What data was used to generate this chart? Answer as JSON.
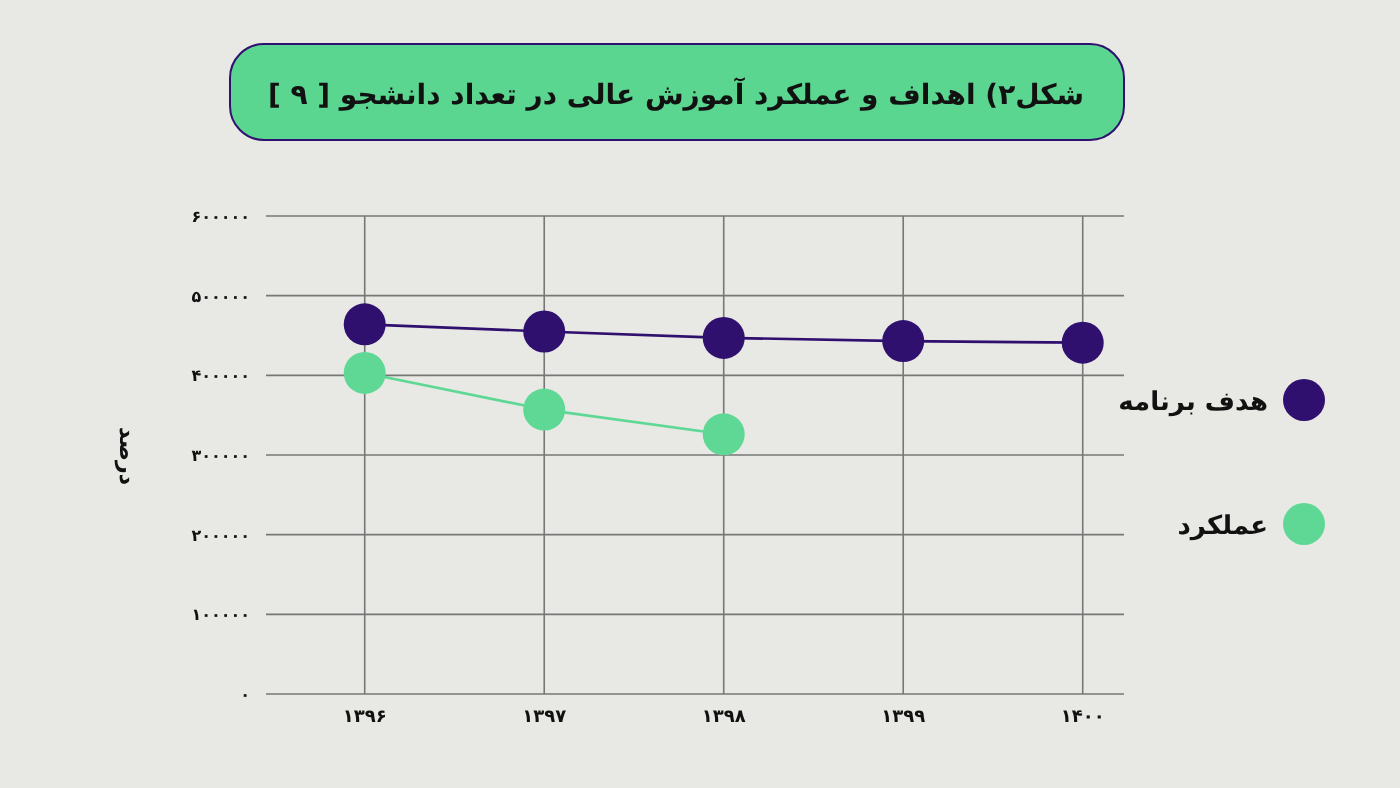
{
  "chart_data": {
    "type": "line",
    "title": "شکل۲) اهداف و عملکرد آموزش عالی در تعداد دانشجو [ ۹ ]",
    "ylabel": "درصد",
    "categories": [
      "۱۳۹۶",
      "۱۳۹۷",
      "۱۳۹۸",
      "۱۳۹۹",
      "۱۴۰۰"
    ],
    "series": [
      {
        "name": "هدف برنامه",
        "color": "#30106e",
        "values": [
          464000,
          455000,
          447000,
          443000,
          441000
        ]
      },
      {
        "name": "عملکرد",
        "color": "#5ed894",
        "values": [
          403000,
          357000,
          326000,
          null,
          null
        ]
      }
    ],
    "ylim": [
      0,
      600000
    ],
    "yticks": [
      {
        "value": 0,
        "label": "۰"
      },
      {
        "value": 100000,
        "label": "۱۰۰۰۰۰"
      },
      {
        "value": 200000,
        "label": "۲۰۰۰۰۰"
      },
      {
        "value": 300000,
        "label": "۳۰۰۰۰۰"
      },
      {
        "value": 400000,
        "label": "۴۰۰۰۰۰"
      },
      {
        "value": 500000,
        "label": "۵۰۰۰۰۰"
      },
      {
        "value": 600000,
        "label": "۶۰۰۰۰۰"
      }
    ],
    "grid": true,
    "legend": "right",
    "marker": "circle",
    "line_style": "solid"
  }
}
